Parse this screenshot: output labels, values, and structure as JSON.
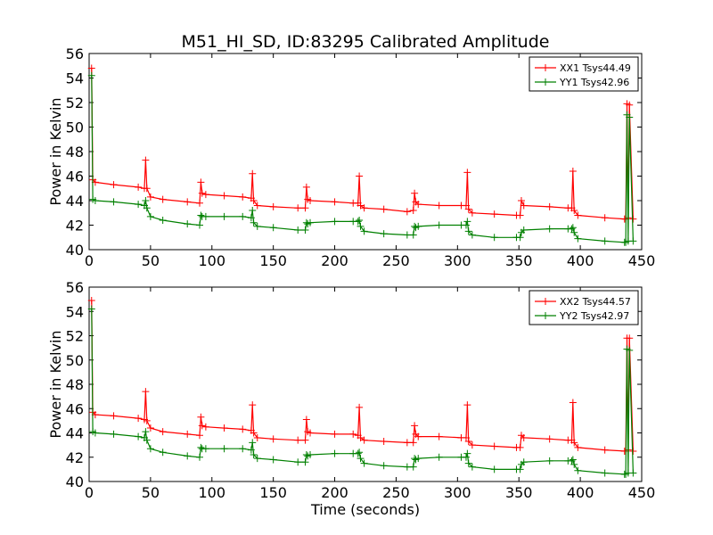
{
  "figure": {
    "title": "M51_HI_SD, ID:83295 Calibrated Amplitude",
    "colors": {
      "xx": "#ff0000",
      "yy": "#008000"
    }
  },
  "chart_data": [
    {
      "type": "line",
      "ylabel": "Power in Kelvin",
      "xlabel": "",
      "xlim": [
        0,
        450
      ],
      "ylim": [
        40,
        56
      ],
      "x_ticks": [
        0,
        50,
        100,
        150,
        200,
        250,
        300,
        350,
        400,
        450
      ],
      "y_ticks": [
        40,
        42,
        44,
        46,
        48,
        50,
        52,
        54,
        56
      ],
      "legend_position": "top-right",
      "grid": false,
      "series": [
        {
          "name": "XX1 Tsys44.49",
          "color": "#ff0000",
          "x": [
            2,
            3,
            5,
            20,
            40,
            45,
            46,
            47,
            50,
            60,
            80,
            90,
            91,
            92,
            95,
            110,
            125,
            132,
            133,
            134,
            137,
            150,
            170,
            176,
            177,
            178,
            180,
            200,
            215,
            219,
            220,
            221,
            224,
            240,
            259,
            264,
            265,
            266,
            268,
            285,
            303,
            307,
            308,
            309,
            312,
            330,
            348,
            351,
            352,
            354,
            375,
            390,
            393,
            394,
            395,
            398,
            420,
            436,
            437,
            438,
            439,
            440,
            443
          ],
          "y": [
            54.8,
            45.7,
            45.5,
            45.3,
            45.1,
            45.0,
            47.3,
            45.0,
            44.3,
            44.1,
            43.9,
            43.8,
            45.5,
            44.6,
            44.5,
            44.4,
            44.3,
            44.2,
            46.2,
            44.0,
            43.6,
            43.5,
            43.4,
            43.4,
            45.1,
            44.1,
            44.0,
            43.9,
            43.8,
            43.8,
            46.0,
            43.6,
            43.4,
            43.3,
            43.1,
            43.2,
            44.6,
            43.9,
            43.7,
            43.6,
            43.6,
            43.6,
            46.3,
            43.3,
            43.0,
            42.9,
            42.8,
            42.8,
            44.0,
            43.6,
            43.5,
            43.4,
            43.4,
            46.4,
            43.2,
            42.8,
            42.6,
            42.5,
            42.5,
            51.9,
            42.6,
            51.8,
            42.5
          ]
        },
        {
          "name": "YY1 Tsys42.96",
          "color": "#008000",
          "x": [
            2,
            3,
            5,
            20,
            40,
            45,
            46,
            47,
            50,
            60,
            80,
            90,
            91,
            92,
            95,
            110,
            125,
            132,
            133,
            134,
            137,
            150,
            170,
            176,
            177,
            178,
            180,
            200,
            215,
            219,
            220,
            221,
            224,
            240,
            259,
            264,
            265,
            266,
            268,
            285,
            303,
            307,
            308,
            309,
            312,
            330,
            348,
            351,
            352,
            354,
            375,
            390,
            393,
            394,
            395,
            398,
            420,
            436,
            437,
            438,
            439,
            440,
            443
          ],
          "y": [
            54.2,
            44.1,
            44.0,
            43.9,
            43.7,
            43.6,
            44.0,
            43.4,
            42.7,
            42.4,
            42.1,
            42.0,
            42.8,
            42.7,
            42.7,
            42.7,
            42.7,
            42.6,
            43.2,
            42.2,
            41.9,
            41.8,
            41.6,
            41.6,
            42.2,
            42.1,
            42.2,
            42.3,
            42.3,
            42.3,
            42.4,
            41.9,
            41.5,
            41.3,
            41.2,
            41.2,
            41.9,
            41.8,
            41.9,
            42.0,
            42.0,
            42.0,
            42.3,
            41.5,
            41.2,
            41.0,
            41.0,
            41.0,
            41.4,
            41.6,
            41.7,
            41.7,
            41.7,
            41.8,
            41.4,
            40.9,
            40.7,
            40.6,
            40.6,
            51.0,
            40.7,
            50.8,
            40.7
          ]
        }
      ]
    },
    {
      "type": "line",
      "ylabel": "Power in Kelvin",
      "xlabel": "Time (seconds)",
      "xlim": [
        0,
        450
      ],
      "ylim": [
        40,
        56
      ],
      "x_ticks": [
        0,
        50,
        100,
        150,
        200,
        250,
        300,
        350,
        400,
        450
      ],
      "y_ticks": [
        40,
        42,
        44,
        46,
        48,
        50,
        52,
        54,
        56
      ],
      "legend_position": "top-right",
      "grid": false,
      "series": [
        {
          "name": "XX2 Tsys44.57",
          "color": "#ff0000",
          "x": [
            2,
            3,
            5,
            20,
            40,
            45,
            46,
            47,
            50,
            60,
            80,
            90,
            91,
            92,
            95,
            110,
            125,
            132,
            133,
            134,
            137,
            150,
            170,
            176,
            177,
            178,
            180,
            200,
            215,
            219,
            220,
            221,
            224,
            240,
            259,
            264,
            265,
            266,
            268,
            285,
            303,
            307,
            308,
            309,
            312,
            330,
            348,
            351,
            352,
            354,
            375,
            390,
            393,
            394,
            395,
            398,
            420,
            436,
            437,
            438,
            439,
            440,
            443
          ],
          "y": [
            54.9,
            45.7,
            45.5,
            45.4,
            45.2,
            45.1,
            47.4,
            45.0,
            44.4,
            44.1,
            43.9,
            43.8,
            45.3,
            44.6,
            44.5,
            44.4,
            44.3,
            44.2,
            46.3,
            44.0,
            43.6,
            43.5,
            43.4,
            43.4,
            45.1,
            44.1,
            44.0,
            43.9,
            43.9,
            43.8,
            46.1,
            43.6,
            43.4,
            43.3,
            43.2,
            43.2,
            44.6,
            43.9,
            43.7,
            43.7,
            43.6,
            43.6,
            46.3,
            43.3,
            43.0,
            42.9,
            42.8,
            42.8,
            43.8,
            43.6,
            43.5,
            43.4,
            43.4,
            46.5,
            43.2,
            42.8,
            42.6,
            42.5,
            42.5,
            51.8,
            42.6,
            51.8,
            42.5
          ]
        },
        {
          "name": "YY2 Tsys42.97",
          "color": "#008000",
          "x": [
            2,
            3,
            5,
            20,
            40,
            45,
            46,
            47,
            50,
            60,
            80,
            90,
            91,
            92,
            95,
            110,
            125,
            132,
            133,
            134,
            137,
            150,
            170,
            176,
            177,
            178,
            180,
            200,
            215,
            219,
            220,
            221,
            224,
            240,
            259,
            264,
            265,
            266,
            268,
            285,
            303,
            307,
            308,
            309,
            312,
            330,
            348,
            351,
            352,
            354,
            375,
            390,
            393,
            394,
            395,
            398,
            420,
            436,
            437,
            438,
            439,
            440,
            443
          ],
          "y": [
            54.2,
            44.1,
            44.0,
            43.9,
            43.7,
            43.6,
            44.1,
            43.4,
            42.7,
            42.4,
            42.1,
            42.0,
            42.8,
            42.7,
            42.7,
            42.7,
            42.7,
            42.6,
            43.2,
            42.2,
            41.9,
            41.8,
            41.6,
            41.6,
            42.2,
            42.1,
            42.2,
            42.3,
            42.3,
            42.3,
            42.4,
            41.9,
            41.5,
            41.3,
            41.2,
            41.2,
            41.9,
            41.8,
            41.9,
            42.0,
            42.0,
            42.0,
            42.3,
            41.5,
            41.2,
            41.0,
            41.0,
            41.0,
            41.4,
            41.6,
            41.7,
            41.7,
            41.7,
            41.8,
            41.4,
            40.9,
            40.7,
            40.6,
            40.6,
            50.9,
            40.7,
            50.8,
            40.7
          ]
        }
      ]
    }
  ]
}
